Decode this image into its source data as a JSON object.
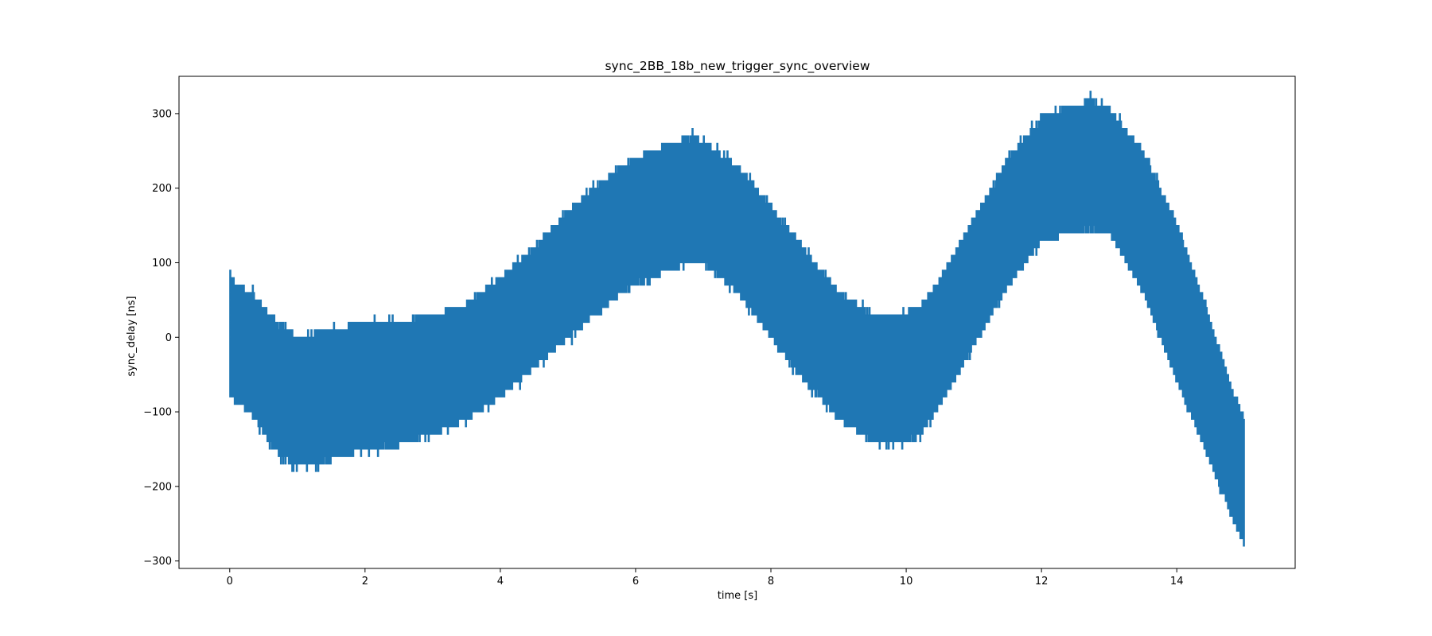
{
  "chart_data": {
    "type": "area",
    "title": "sync_2BB_18b_new_trigger_sync_overview",
    "xlabel": "time [s]",
    "ylabel": "sync_delay [ns]",
    "xlim": [
      -0.75,
      15.75
    ],
    "ylim": [
      -310,
      350
    ],
    "xticks": [
      0,
      2,
      4,
      6,
      8,
      10,
      12,
      14
    ],
    "yticks": [
      -300,
      -200,
      -100,
      0,
      100,
      200,
      300
    ],
    "xtick_labels": [
      "0",
      "2",
      "4",
      "6",
      "8",
      "10",
      "12",
      "14"
    ],
    "ytick_labels": [
      "−300",
      "−200",
      "−100",
      "0",
      "100",
      "200",
      "300"
    ],
    "grid": false,
    "legend": "none",
    "color": "#1f77b4",
    "series": [
      {
        "x": [
          0,
          0.1,
          0.3,
          0.5,
          0.75,
          1.0,
          1.5,
          2.0,
          2.5,
          3.0,
          3.5,
          4.0,
          4.5,
          5.0,
          5.5,
          6.0,
          6.5,
          6.8,
          7.0,
          7.5,
          8.0,
          8.5,
          9.0,
          9.5,
          9.8,
          10.2,
          10.5,
          11.0,
          11.5,
          12.0,
          12.5,
          12.7,
          13.0,
          13.5,
          14.0,
          14.5,
          14.8,
          15.0
        ],
        "upper": [
          80,
          70,
          60,
          40,
          15,
          0,
          10,
          20,
          22,
          30,
          45,
          80,
          120,
          170,
          210,
          240,
          260,
          268,
          262,
          230,
          175,
          115,
          60,
          30,
          28,
          40,
          80,
          160,
          240,
          295,
          312,
          318,
          305,
          250,
          150,
          20,
          -70,
          -110
        ],
        "lower": [
          -80,
          -90,
          -100,
          -130,
          -160,
          -175,
          -165,
          -150,
          -145,
          -130,
          -110,
          -80,
          -40,
          0,
          40,
          70,
          90,
          100,
          100,
          60,
          0,
          -60,
          -110,
          -140,
          -145,
          -130,
          -90,
          -10,
          70,
          130,
          140,
          145,
          140,
          60,
          -60,
          -170,
          -240,
          -280
        ]
      }
    ]
  }
}
